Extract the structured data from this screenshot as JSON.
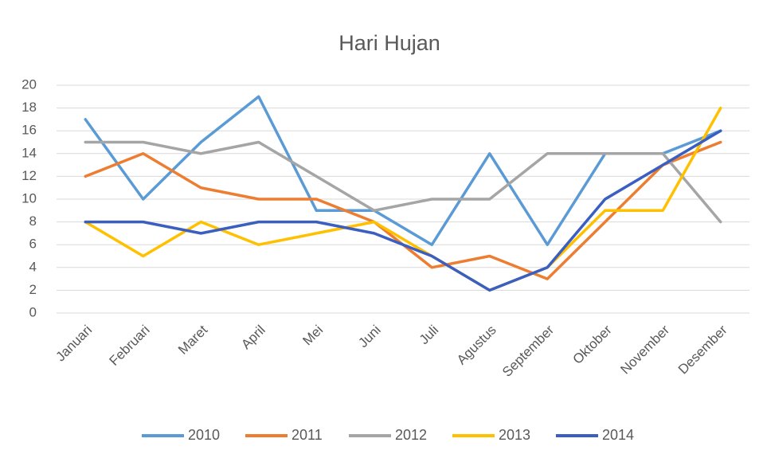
{
  "chart_data": {
    "type": "line",
    "title": "Hari Hujan",
    "categories": [
      "Januari",
      "Februari",
      "Maret",
      "April",
      "Mei",
      "Juni",
      "Juli",
      "Agustus",
      "September",
      "Oktober",
      "November",
      "Desember"
    ],
    "series": [
      {
        "name": "2010",
        "color": "#5b9bd5",
        "values": [
          17,
          10,
          15,
          19,
          9,
          9,
          6,
          14,
          6,
          14,
          14,
          16
        ]
      },
      {
        "name": "2011",
        "color": "#ed7d31",
        "values": [
          12,
          14,
          11,
          10,
          10,
          8,
          4,
          5,
          3,
          8,
          13,
          15
        ]
      },
      {
        "name": "2012",
        "color": "#a5a5a5",
        "values": [
          15,
          15,
          14,
          15,
          12,
          9,
          10,
          10,
          14,
          14,
          14,
          8
        ]
      },
      {
        "name": "2013",
        "color": "#ffc000",
        "values": [
          8,
          5,
          8,
          6,
          7,
          8,
          5,
          2,
          4,
          9,
          9,
          18
        ]
      },
      {
        "name": "2014",
        "color": "#3a5fc0",
        "values": [
          8,
          8,
          7,
          8,
          8,
          7,
          5,
          2,
          4,
          10,
          13,
          16
        ]
      }
    ],
    "ylim": [
      0,
      20
    ],
    "yticks": [
      0,
      2,
      4,
      6,
      8,
      10,
      12,
      14,
      16,
      18,
      20
    ],
    "grid": true,
    "legend": "bottom"
  }
}
